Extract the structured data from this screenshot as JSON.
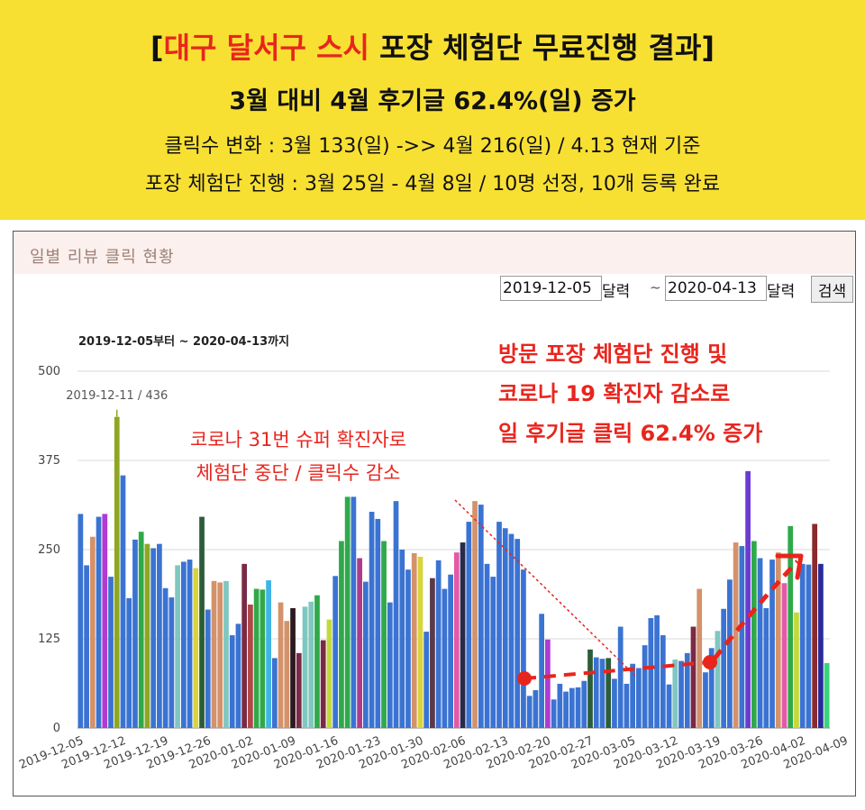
{
  "banner": {
    "title_prefix": "[",
    "title_highlight": "대구 달서구 스시",
    "title_rest": " 포장 체험단 무료진행 결과]",
    "subtitle": "3월 대비 4월 후기글 62.4%(일) 증가",
    "line1": "클릭수 변화 : 3월 133(일) ->> 4월 216(일) / 4.13 현재 기준",
    "line2": "포장 체험단 진행 : 3월 25일 - 4월 8일 / 10명 선정, 10개 등록 완료",
    "background": "#f8e033",
    "highlight_color": "#e8251d"
  },
  "panel": {
    "title": "일별 리뷰 클릭 현황",
    "start_date": "2019-12-05",
    "start_cal_label": "달력",
    "end_date": "2020-04-13",
    "end_cal_label": "달력",
    "range_sep": "~",
    "search_label": "검색"
  },
  "chart_data": {
    "type": "bar",
    "title": "2019-12-05부터 ~ 2020-04-13까지",
    "ylim": [
      0,
      500
    ],
    "yticks": [
      0,
      125,
      250,
      375,
      500
    ],
    "x_ticks": [
      "2019-12-05",
      "2019-12-12",
      "2019-12-19",
      "2019-12-26",
      "2020-01-02",
      "2020-01-09",
      "2020-01-16",
      "2020-01-23",
      "2020-01-30",
      "2020-02-06",
      "2020-02-13",
      "2020-02-20",
      "2020-02-27",
      "2020-03-05",
      "2020-03-12",
      "2020-03-19",
      "2020-03-26",
      "2020-04-02",
      "2020-04-09"
    ],
    "start_date": "2019-12-05",
    "values": [
      300,
      228,
      268,
      296,
      300,
      212,
      436,
      354,
      182,
      264,
      275,
      258,
      252,
      258,
      196,
      183,
      228,
      233,
      236,
      224,
      296,
      166,
      206,
      204,
      206,
      130,
      146,
      230,
      173,
      195,
      194,
      207,
      98,
      176,
      150,
      168,
      105,
      170,
      177,
      186,
      123,
      152,
      213,
      262,
      324,
      324,
      238,
      205,
      303,
      293,
      262,
      176,
      318,
      250,
      222,
      245,
      240,
      135,
      210,
      235,
      195,
      215,
      246,
      260,
      289,
      318,
      313,
      230,
      212,
      289,
      280,
      272,
      265,
      222,
      45,
      53,
      160,
      124,
      40,
      62,
      51,
      56,
      57,
      66,
      110,
      99,
      97,
      98,
      69,
      142,
      62,
      90,
      84,
      116,
      154,
      158,
      130,
      61,
      96,
      94,
      105,
      142,
      195,
      78,
      112,
      136,
      167,
      208,
      260,
      255,
      360,
      262,
      238,
      168,
      236,
      246,
      203,
      283,
      162,
      230,
      229,
      286,
      230,
      91
    ],
    "colors": [
      "#3a73d2",
      "#3a73d2",
      "#d4926a",
      "#3a73d2",
      "#b03ad2",
      "#3a73d2",
      "#8ea722",
      "#3a73d2",
      "#3a73d2",
      "#3a73d2",
      "#2fa94a",
      "#8ea722",
      "#3a73d2",
      "#3a73d2",
      "#3a73d2",
      "#3a73d2",
      "#7fc7c0",
      "#3a73d2",
      "#3a73d2",
      "#d8d43b",
      "#2b5d3a",
      "#3a73d2",
      "#d4926a",
      "#d4926a",
      "#7fc7c0",
      "#3a73d2",
      "#3a73d2",
      "#7a2a45",
      "#b14848",
      "#2fa94a",
      "#2fa94a",
      "#3fb4e6",
      "#3a73d2",
      "#d4926a",
      "#d4926a",
      "#2b1a20",
      "#7a2a45",
      "#7fc7c0",
      "#7fc7c0",
      "#2fa94a",
      "#7a2a45",
      "#c4d83b",
      "#3a73d2",
      "#2fa94a",
      "#2fa94a",
      "#3a73d2",
      "#b03a8a",
      "#3a73d2",
      "#3a73d2",
      "#3a73d2",
      "#2fa94a",
      "#3a73d2",
      "#3a73d2",
      "#3a73d2",
      "#3a73d2",
      "#d4926a",
      "#d8d43b",
      "#3a73d2",
      "#5a3a4a",
      "#3a73d2",
      "#3a73d2",
      "#3a73d2",
      "#e25aa8",
      "#2a2a4a",
      "#3a73d2",
      "#d4926a",
      "#3a73d2",
      "#3a73d2",
      "#3a73d2",
      "#3a73d2",
      "#3a73d2",
      "#3a73d2",
      "#3a73d2",
      "#3a73d2",
      "#3a73d2",
      "#3a73d2",
      "#3a73d2",
      "#b03ad2",
      "#3a73d2",
      "#3a73d2",
      "#3a73d2",
      "#3a73d2",
      "#3a73d2",
      "#3a73d2",
      "#2b5d3a",
      "#3a73d2",
      "#3a73d2",
      "#2b5d3a",
      "#3a73d2",
      "#3a73d2",
      "#3a73d2",
      "#3a73d2",
      "#3a73d2",
      "#3a73d2",
      "#3a73d2",
      "#3a73d2",
      "#3a73d2",
      "#3a73d2",
      "#7fc7c0",
      "#3a73d2",
      "#3a73d2",
      "#7a2a45",
      "#d4926a",
      "#3a73d2",
      "#3a73d2",
      "#7fc7c0",
      "#3a73d2",
      "#3a73d2",
      "#d4926a",
      "#3a73d2",
      "#6a3ad2",
      "#2fa94a",
      "#3a73d2",
      "#3a73d2",
      "#3a73d2",
      "#d4926a",
      "#e25aa8",
      "#2fa94a",
      "#c4d83b",
      "#3a73d2",
      "#3a73d2",
      "#8a2a2a",
      "#2a2a9a",
      "#3ad27a"
    ],
    "marker_label": "2019-12-11 / 436",
    "marker_index": 6,
    "annotations": {
      "left": [
        "코로나 31번 슈퍼 확진자로",
        "체험단 중단 / 클릭수 감소"
      ],
      "right": [
        "방문 포장 체험단 진행 및",
        "코로나 19 확진자 감소로",
        "일 후기글 클릭 62.4% 증가"
      ],
      "color": "#e8251d"
    }
  }
}
